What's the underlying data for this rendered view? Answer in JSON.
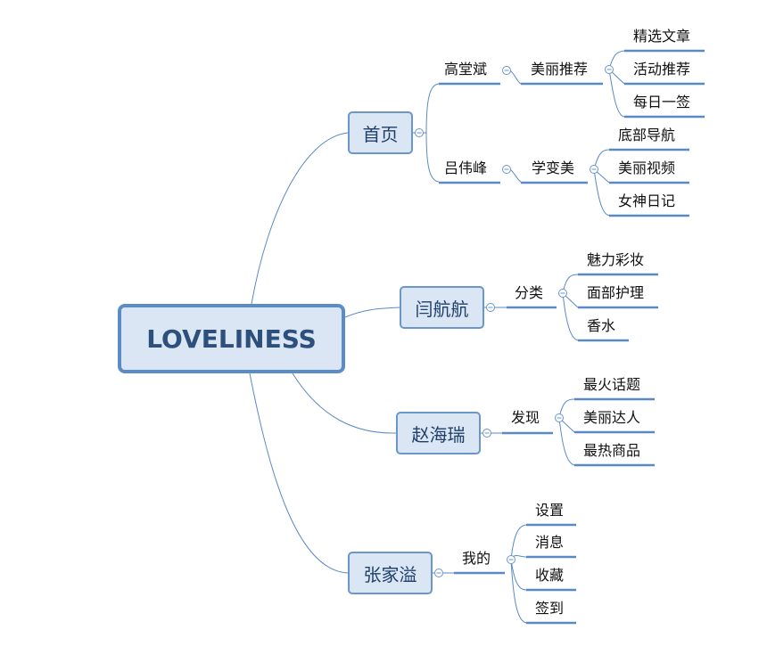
{
  "root": {
    "label": "LOVELINESS"
  },
  "branches": [
    {
      "label": "首页",
      "children": [
        {
          "label": "高堂斌",
          "children": [
            {
              "label": "美丽推荐",
              "children": [
                {
                  "label": "精选文章"
                },
                {
                  "label": "活动推荐"
                },
                {
                  "label": "每日一签"
                }
              ]
            }
          ]
        },
        {
          "label": "吕伟峰",
          "children": [
            {
              "label": "学变美",
              "children": [
                {
                  "label": "底部导航"
                },
                {
                  "label": "美丽视频"
                },
                {
                  "label": "女神日记"
                }
              ]
            }
          ]
        }
      ]
    },
    {
      "label": "闫航航",
      "children": [
        {
          "label": "分类",
          "children": [
            {
              "label": "魅力彩妆"
            },
            {
              "label": "面部护理"
            },
            {
              "label": "香水"
            }
          ]
        }
      ]
    },
    {
      "label": "赵海瑞",
      "children": [
        {
          "label": "发现",
          "children": [
            {
              "label": "最火话题"
            },
            {
              "label": "美丽达人"
            },
            {
              "label": "最热商品"
            }
          ]
        }
      ]
    },
    {
      "label": "张家溢",
      "children": [
        {
          "label": "我的",
          "children": [
            {
              "label": "设置"
            },
            {
              "label": "消息"
            },
            {
              "label": "收藏"
            },
            {
              "label": "签到"
            }
          ]
        }
      ]
    }
  ],
  "style": {
    "line_color": "#5a8ac6",
    "topic_fill": "#dbe6f4",
    "topic_border": "#6a96c9"
  }
}
